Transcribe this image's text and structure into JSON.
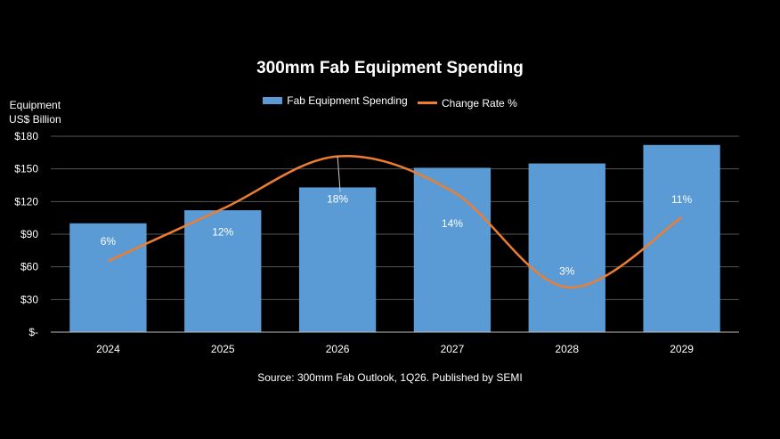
{
  "chart_data": {
    "type": "bar",
    "title": "300mm Fab Equipment Spending",
    "ylabel_lines": [
      "Equipment",
      "US$ Billion"
    ],
    "xlabel": "",
    "categories": [
      "2024",
      "2025",
      "2026",
      "2027",
      "2028",
      "2029"
    ],
    "series": [
      {
        "name": "Fab Equipment Spending",
        "type": "bar",
        "values": [
          100,
          112,
          133,
          151,
          155,
          172
        ]
      },
      {
        "name": "Change Rate %",
        "type": "line",
        "values": [
          6,
          12,
          18,
          14,
          3,
          11
        ],
        "labels": [
          "6%",
          "12%",
          "18%",
          "14%",
          "3%",
          "11%"
        ]
      }
    ],
    "ylim": [
      0,
      180
    ],
    "yticks": [
      0,
      30,
      60,
      90,
      120,
      150,
      180
    ],
    "ytick_labels": [
      "$-",
      "$30",
      "$60",
      "$90",
      "$120",
      "$150",
      "$180"
    ],
    "grid": true,
    "legend_position": "top-center",
    "source": "Source: 300mm Fab Outlook, 1Q26. Published by SEMI"
  },
  "colors": {
    "bar": "#5b9bd5",
    "line": "#ed7d31",
    "grid": "#555555",
    "text": "#ffffff"
  }
}
